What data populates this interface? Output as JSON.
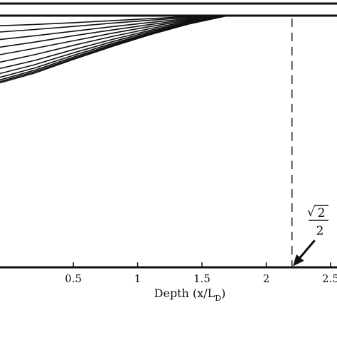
{
  "chart_data": {
    "type": "line",
    "xlabel": "Depth (x/L",
    "xlabel_sub": "D",
    "xlabel_close": ")",
    "xlim": [
      -0.07,
      2.55
    ],
    "ylim": [
      0,
      1
    ],
    "grid": false,
    "x_ticks": [
      {
        "value": 0.5,
        "label": "0.5"
      },
      {
        "value": 1,
        "label": "1"
      },
      {
        "value": 1.5,
        "label": "1.5"
      },
      {
        "value": 2,
        "label": "2"
      },
      {
        "value": 2.5,
        "label": "2.5"
      }
    ],
    "reference_line": {
      "x": 2.2,
      "style": "dashed"
    },
    "annotation": {
      "numerator": "2",
      "denominator": "2",
      "radical": "√",
      "points_to_x": 2.2,
      "points_to_y": 0
    },
    "series": [
      {
        "x": [
          -0.07,
          0.2,
          0.5,
          0.8,
          1.1,
          1.4,
          1.7
        ],
        "y": [
          0.96,
          0.965,
          0.972,
          0.98,
          0.988,
          0.996,
          1.0
        ]
      },
      {
        "x": [
          -0.07,
          0.2,
          0.5,
          0.8,
          1.1,
          1.4,
          1.7
        ],
        "y": [
          0.935,
          0.945,
          0.957,
          0.97,
          0.982,
          0.993,
          1.0
        ]
      },
      {
        "x": [
          -0.07,
          0.2,
          0.5,
          0.8,
          1.1,
          1.4,
          1.7
        ],
        "y": [
          0.905,
          0.92,
          0.938,
          0.956,
          0.973,
          0.989,
          1.0
        ]
      },
      {
        "x": [
          -0.07,
          0.2,
          0.5,
          0.8,
          1.1,
          1.4,
          1.7
        ],
        "y": [
          0.875,
          0.895,
          0.92,
          0.943,
          0.965,
          0.985,
          1.0
        ]
      },
      {
        "x": [
          -0.07,
          0.2,
          0.5,
          0.8,
          1.1,
          1.4,
          1.7
        ],
        "y": [
          0.845,
          0.87,
          0.9,
          0.93,
          0.957,
          0.982,
          1.0
        ]
      },
      {
        "x": [
          -0.07,
          0.2,
          0.5,
          0.8,
          1.1,
          1.4,
          1.7
        ],
        "y": [
          0.815,
          0.845,
          0.882,
          0.917,
          0.949,
          0.978,
          1.0
        ]
      },
      {
        "x": [
          -0.07,
          0.2,
          0.5,
          0.8,
          1.1,
          1.4,
          1.7
        ],
        "y": [
          0.79,
          0.822,
          0.865,
          0.905,
          0.942,
          0.975,
          1.0
        ]
      },
      {
        "x": [
          -0.07,
          0.2,
          0.5,
          0.8,
          1.1,
          1.4,
          1.7
        ],
        "y": [
          0.77,
          0.805,
          0.852,
          0.896,
          0.937,
          0.972,
          1.0
        ]
      },
      {
        "x": [
          -0.07,
          0.2,
          0.5,
          0.8,
          1.1,
          1.4,
          1.7
        ],
        "y": [
          0.755,
          0.792,
          0.842,
          0.889,
          0.932,
          0.97,
          1.0
        ]
      },
      {
        "x": [
          -0.07,
          0.2,
          0.5,
          0.8,
          1.1,
          1.4,
          1.7
        ],
        "y": [
          0.745,
          0.783,
          0.835,
          0.884,
          0.929,
          0.969,
          1.0
        ]
      },
      {
        "x": [
          -0.07,
          0.2,
          0.5,
          0.8,
          1.1,
          1.4,
          1.7
        ],
        "y": [
          0.738,
          0.777,
          0.83,
          0.88,
          0.927,
          0.968,
          1.0
        ]
      },
      {
        "x": [
          -0.07,
          0.2,
          0.5,
          0.8,
          1.1,
          1.4,
          1.7
        ],
        "y": [
          0.733,
          0.772,
          0.826,
          0.877,
          0.925,
          0.967,
          1.0
        ]
      }
    ]
  }
}
